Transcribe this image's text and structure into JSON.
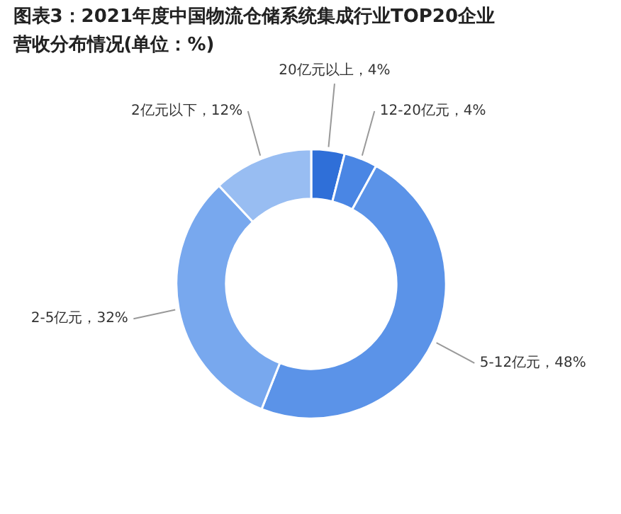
{
  "chart_data": {
    "type": "donut",
    "title": "图表3：2021年度中国物流仓储系统集成行业TOP20企业营收分布情况(单位：%)",
    "categories": [
      "20亿元以上",
      "12-20亿元",
      "5-12亿元",
      "2-5亿元",
      "2亿元以下"
    ],
    "values": [
      4,
      4,
      48,
      32,
      12
    ],
    "colors": [
      "#2f6fd8",
      "#4a86e4",
      "#5b93e8",
      "#78a8ee",
      "#98bdf2"
    ],
    "value_labels": [
      "4%",
      "4%",
      "48%",
      "32%",
      "12%"
    ]
  }
}
